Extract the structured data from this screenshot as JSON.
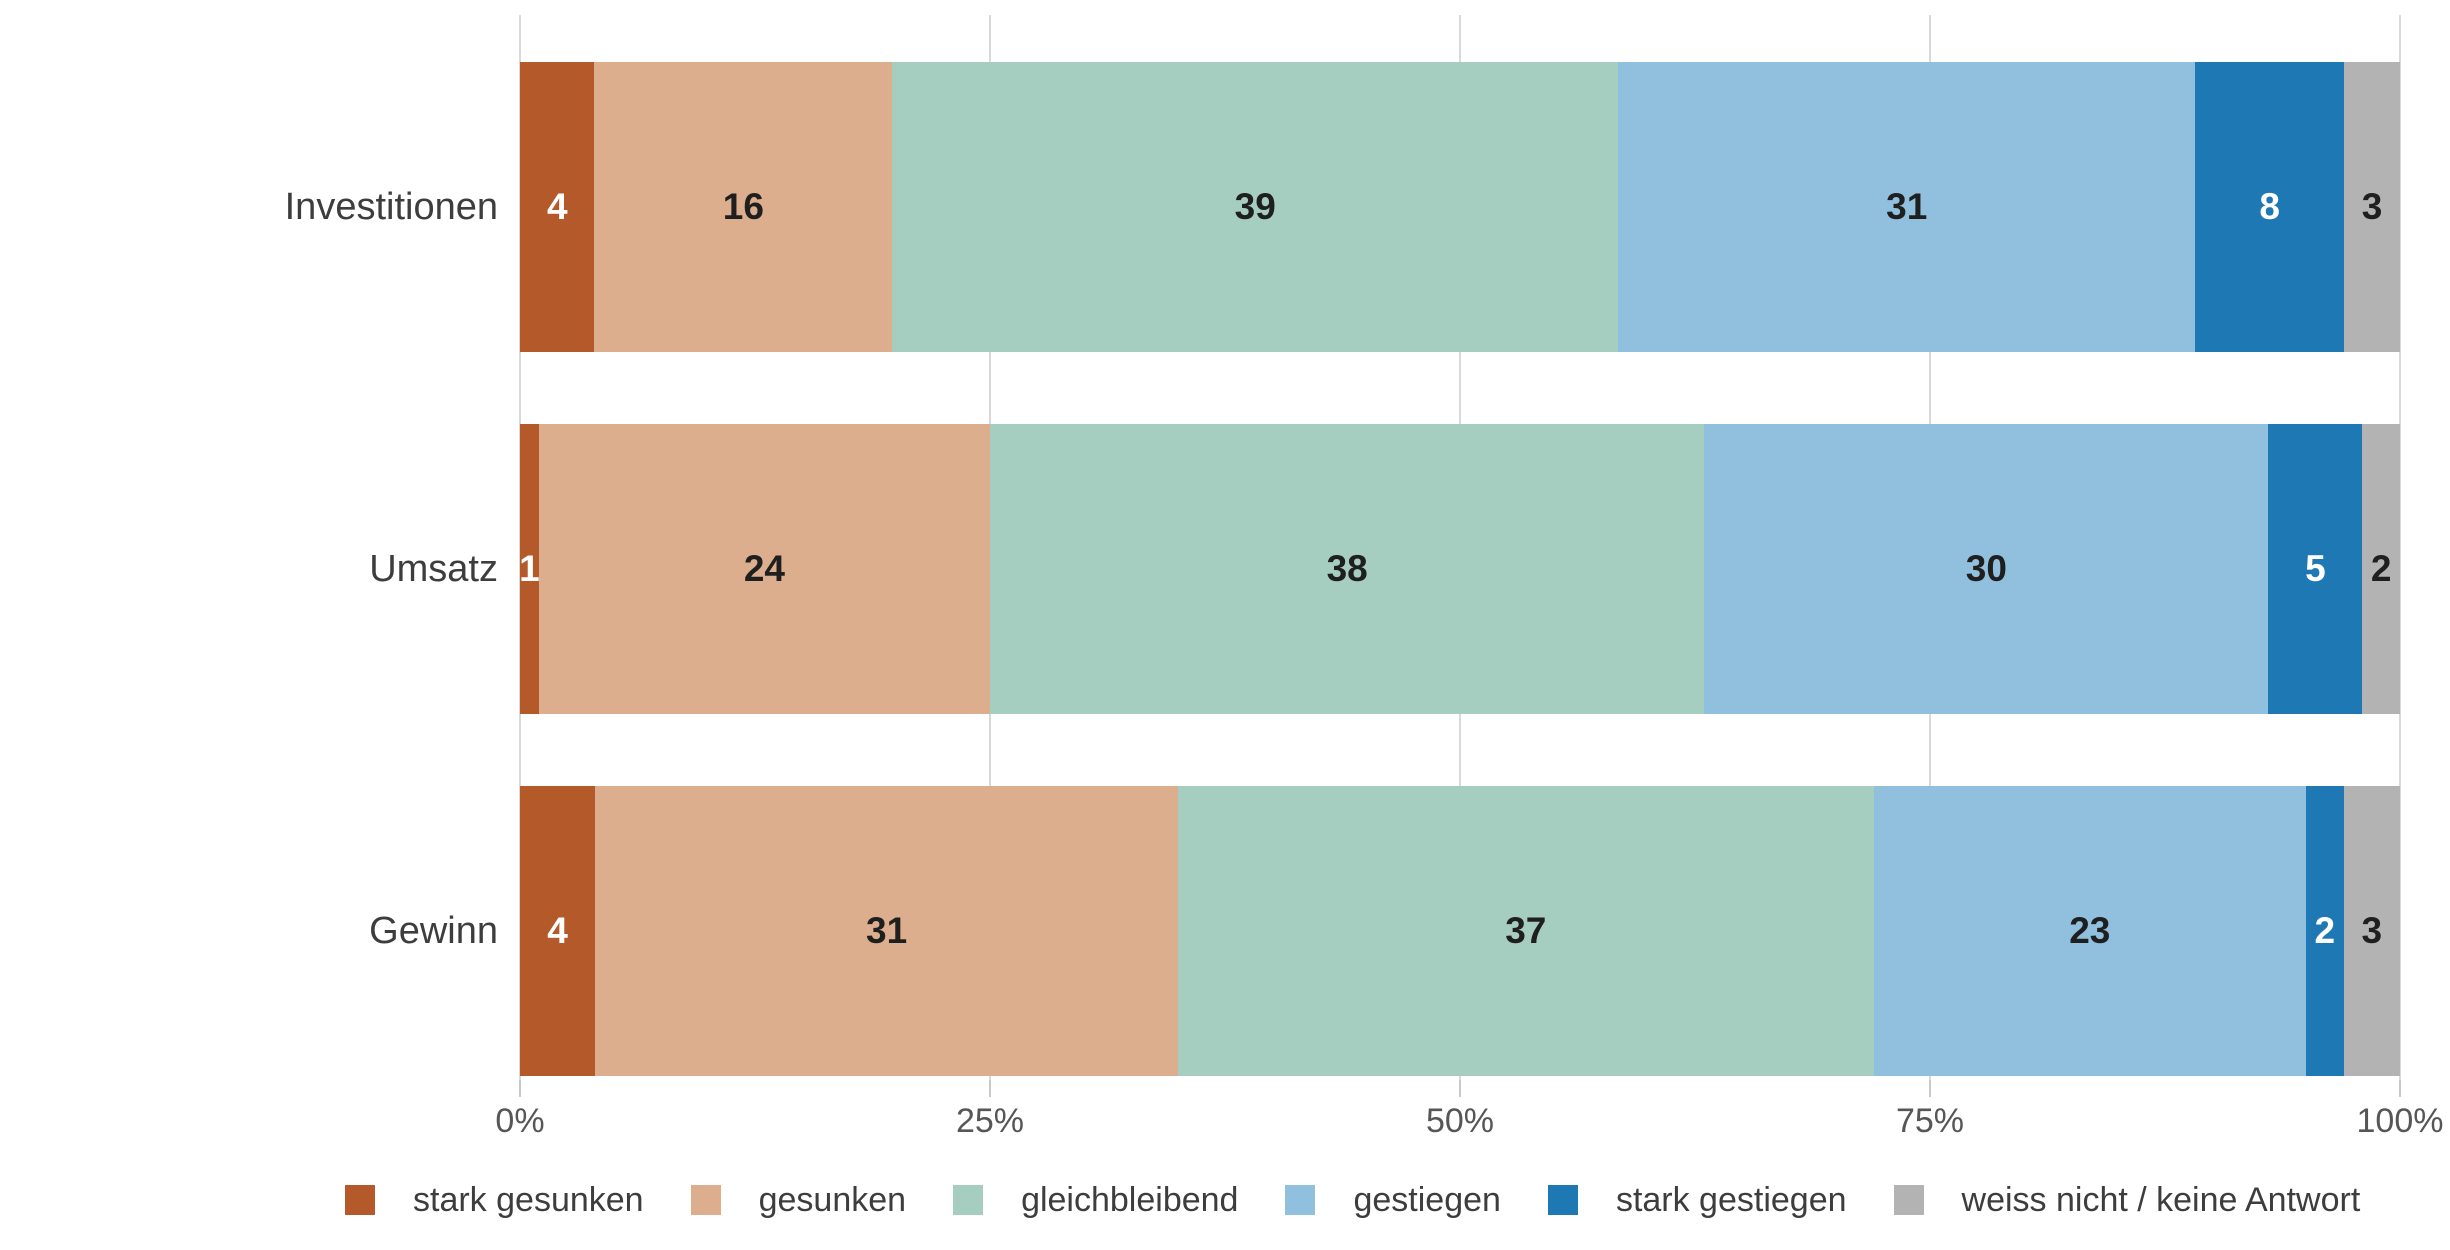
{
  "chart_data": {
    "type": "bar",
    "variant": "horizontal-100-percent-stacked",
    "title": "",
    "xlabel": "",
    "ylabel": "",
    "categories": [
      "Investitionen",
      "Umsatz",
      "Gewinn"
    ],
    "series": [
      {
        "name": "stark gesunken",
        "color": "#b3592a",
        "label_color": "#ffffff",
        "values": [
          4,
          1,
          4
        ]
      },
      {
        "name": "gesunken",
        "color": "#dcae8e",
        "label_color": "#1f1f1f",
        "values": [
          16,
          24,
          31
        ]
      },
      {
        "name": "gleichbleibend",
        "color": "#a5cec0",
        "label_color": "#1f1f1f",
        "values": [
          39,
          38,
          37
        ]
      },
      {
        "name": "gestiegen",
        "color": "#91bfde",
        "label_color": "#1f1f1f",
        "values": [
          31,
          30,
          23
        ]
      },
      {
        "name": "stark gestiegen",
        "color": "#1e78b4",
        "label_color": "#ffffff",
        "values": [
          8,
          5,
          2
        ]
      },
      {
        "name": "weiss nicht / keine Antwort",
        "color": "#b3b3b3",
        "label_color": "#1f1f1f",
        "values": [
          3,
          2,
          3
        ]
      }
    ],
    "x_ticks": [
      {
        "label": "0%",
        "value": 0
      },
      {
        "label": "25%",
        "value": 25
      },
      {
        "label": "50%",
        "value": 50
      },
      {
        "label": "75%",
        "value": 75
      },
      {
        "label": "100%",
        "value": 100
      }
    ],
    "xlim": [
      0,
      100
    ],
    "grid": true,
    "legend_position": "bottom"
  },
  "style": {
    "gridline_color": "#d9d9d9",
    "tick_color": "#c9c9c9",
    "tick_label_color": "#565656",
    "category_label_color": "#3d3d3d",
    "legend_text_color": "#3d3d3d"
  }
}
